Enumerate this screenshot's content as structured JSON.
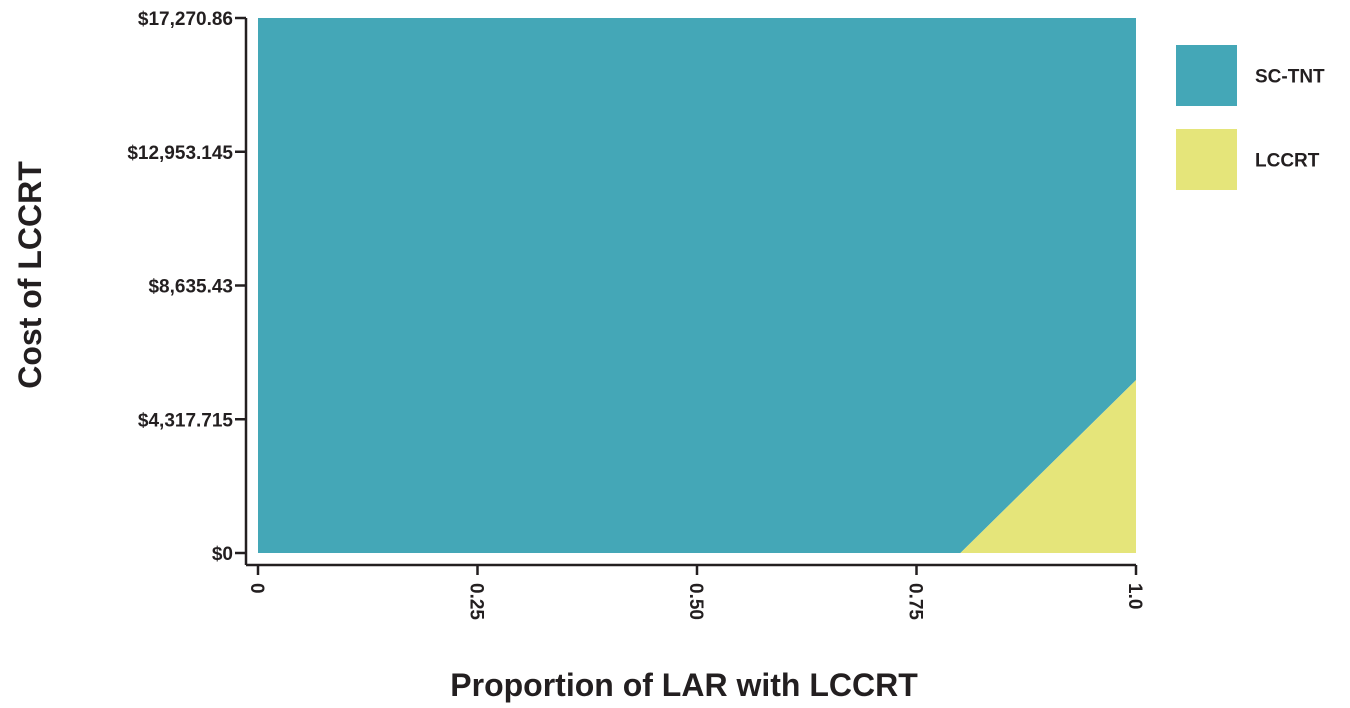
{
  "chart_data": {
    "type": "area",
    "xlabel": "Proportion of LAR with LCCRT",
    "ylabel": "Cost of LCCRT",
    "xlim": [
      0,
      1
    ],
    "ylim": [
      0,
      17270.86
    ],
    "x_ticks": [
      {
        "value": 0,
        "label": "0"
      },
      {
        "value": 0.25,
        "label": "0.25"
      },
      {
        "value": 0.5,
        "label": "0.50"
      },
      {
        "value": 0.75,
        "label": "0.75"
      },
      {
        "value": 1.0,
        "label": "1.0"
      }
    ],
    "y_ticks": [
      {
        "value": 0,
        "label": "$0"
      },
      {
        "value": 4317.715,
        "label": "$4,317.715"
      },
      {
        "value": 8635.43,
        "label": "$8,635.43"
      },
      {
        "value": 12953.145,
        "label": "$12,953.145"
      },
      {
        "value": 17270.86,
        "label": "$17,270.86"
      }
    ],
    "regions": [
      {
        "name": "SC-TNT",
        "color": "#44a7b7",
        "polygon": [
          [
            0,
            0
          ],
          [
            0.8,
            0
          ],
          [
            1.0,
            5580
          ],
          [
            1.0,
            17270.86
          ],
          [
            0,
            17270.86
          ]
        ]
      },
      {
        "name": "LCCRT",
        "color": "#e5e57a",
        "polygon": [
          [
            0.8,
            0
          ],
          [
            1.0,
            0
          ],
          [
            1.0,
            5580
          ]
        ]
      }
    ],
    "legend": {
      "position": "right",
      "items": [
        {
          "label": "SC-TNT",
          "color": "#44a7b7"
        },
        {
          "label": "LCCRT",
          "color": "#e5e57a"
        }
      ]
    },
    "grid": false
  }
}
